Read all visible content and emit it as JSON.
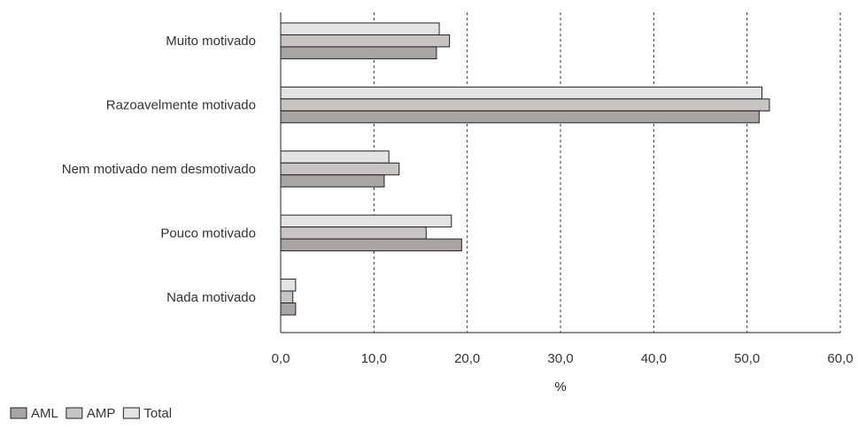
{
  "chart_data": {
    "type": "bar",
    "orientation": "horizontal",
    "categories": [
      "Muito motivado",
      "Razoavelmente motivado",
      "Nem motivado nem desmotivado",
      "Pouco motivado",
      "Nada motivado"
    ],
    "series": [
      {
        "name": "Total",
        "values": [
          17.0,
          51.6,
          11.6,
          18.3,
          1.6
        ],
        "color": "#e3e3e3"
      },
      {
        "name": "AMP",
        "values": [
          18.1,
          52.4,
          12.7,
          15.6,
          1.3
        ],
        "color": "#c8c4c1"
      },
      {
        "name": "AML",
        "values": [
          16.7,
          51.3,
          11.1,
          19.4,
          1.6
        ],
        "color": "#aaa5a2"
      }
    ],
    "legend_order": [
      "AML",
      "AMP",
      "Total"
    ],
    "xlim": [
      0,
      60
    ],
    "xticks": [
      "0,0",
      "10,0",
      "20,0",
      "30,0",
      "40,0",
      "50,0",
      "60,0"
    ],
    "xlabel": "%",
    "ylabel": "",
    "title": "",
    "grid": "vertical dashed",
    "legend_position": "bottom-left"
  }
}
